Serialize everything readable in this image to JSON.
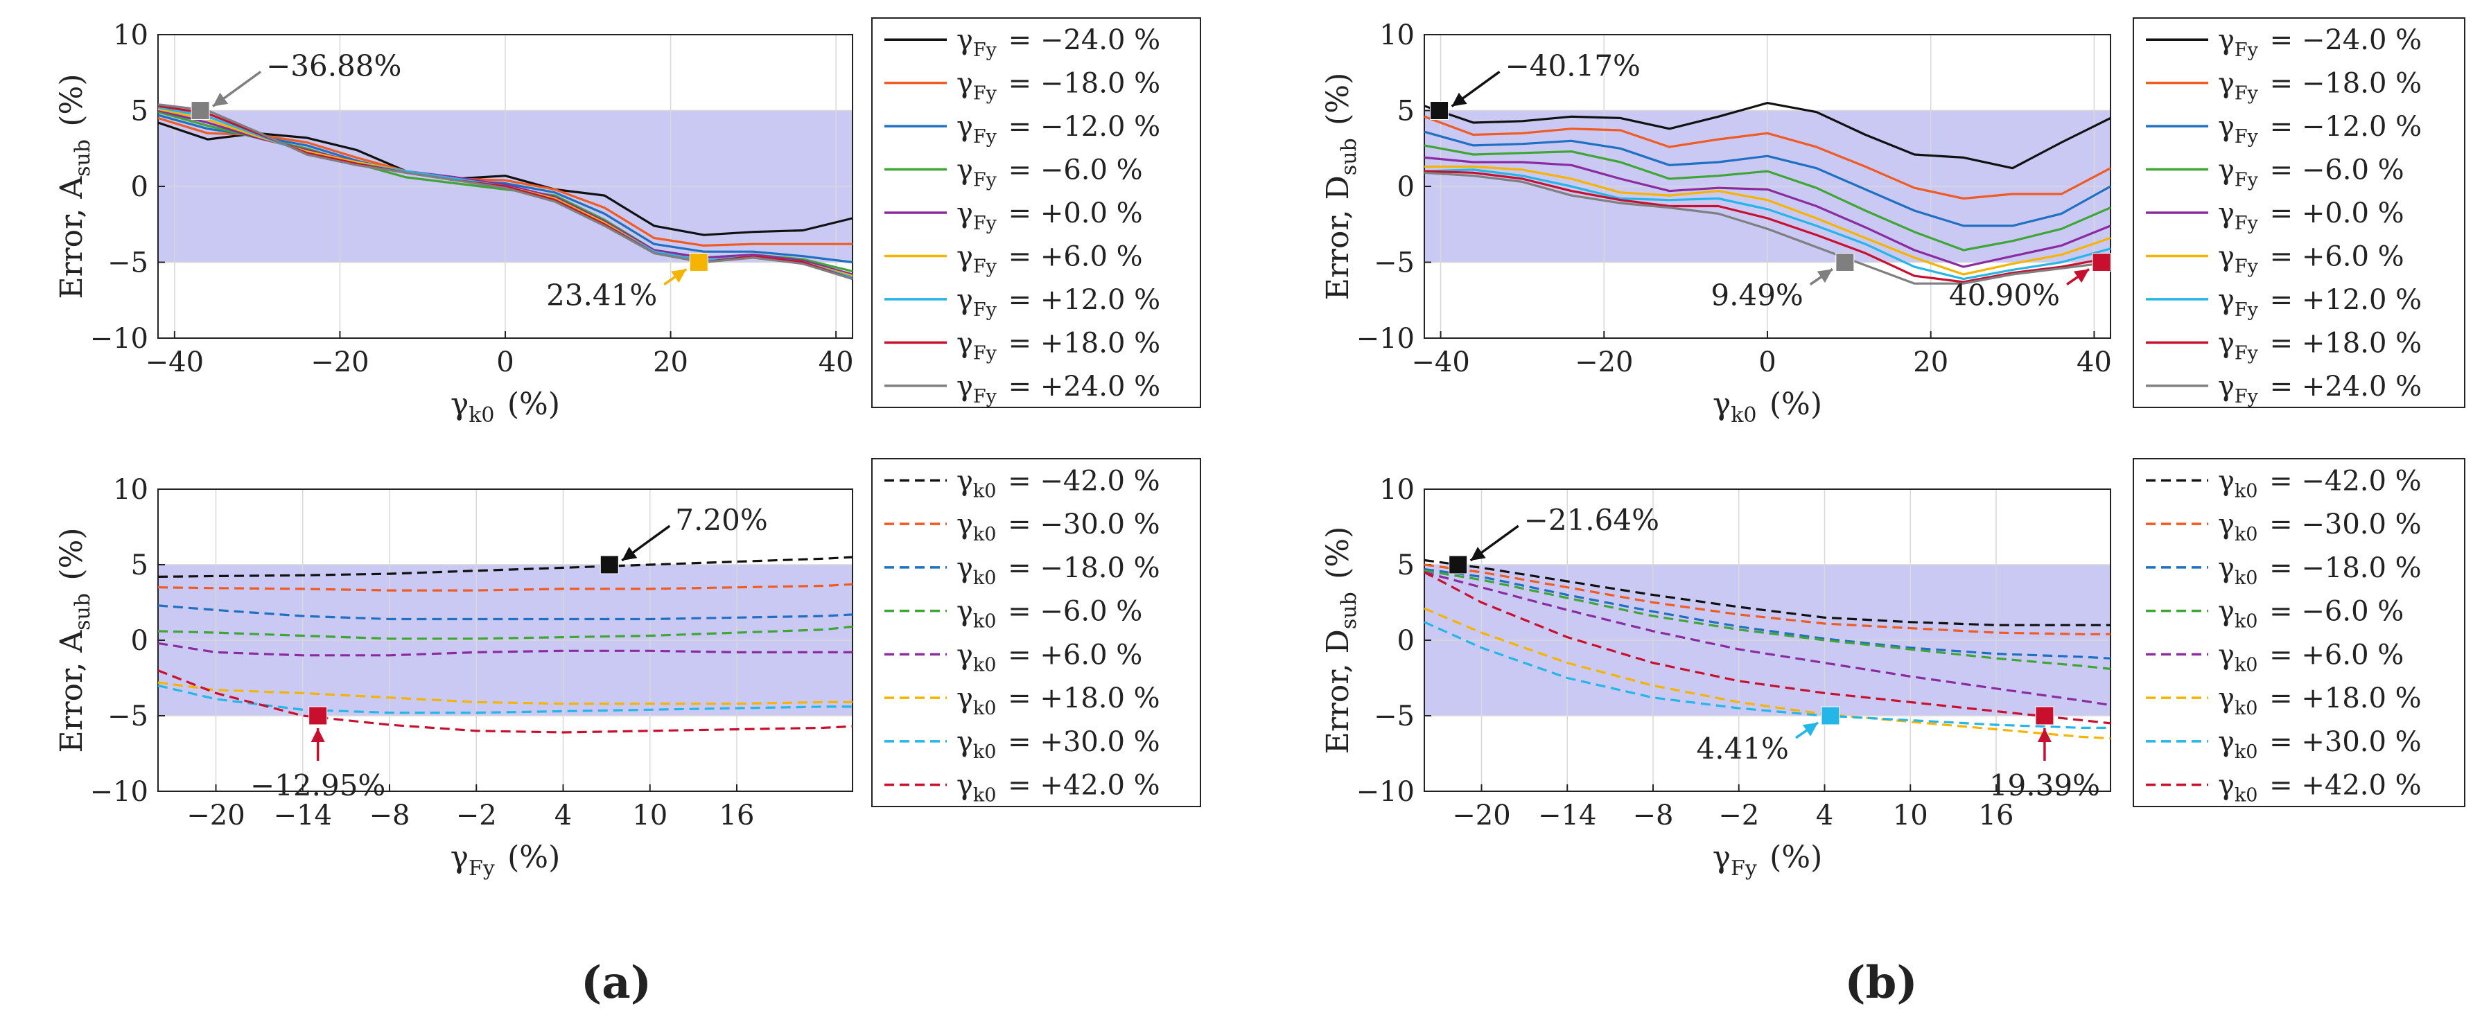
{
  "panel_labels": {
    "a": "(a)",
    "b": "(b)"
  },
  "colors": {
    "band": "#c9c9f3",
    "grid": "#d8d8d8",
    "black": "#111111",
    "orange": "#f05a23",
    "blue": "#1f6fc2",
    "green": "#3fa535",
    "purple": "#8a2ca0",
    "yellow": "#f5b400",
    "cyan": "#25b6e8",
    "crimson": "#c8102e",
    "gray": "#7f7f7f"
  },
  "chart_data": [
    {
      "id": "a-top",
      "type": "line",
      "ylabel": "Error, A_sub (%)",
      "xlabel": "γ_k0 (%)",
      "xlim": [
        -42,
        42
      ],
      "ylim": [
        -10,
        10
      ],
      "xticks": [
        -40,
        -20,
        0,
        20,
        40
      ],
      "yticks": [
        10,
        5,
        0,
        -5,
        -10
      ],
      "tolerance_band": [
        -5,
        5
      ],
      "x": [
        -42,
        -36,
        -30,
        -24,
        -18,
        -12,
        -6,
        0,
        6,
        12,
        18,
        24,
        30,
        36,
        42
      ],
      "series": [
        {
          "name": "γ_Fy = −24.0 %",
          "color": "black",
          "values": [
            4.2,
            3.1,
            3.5,
            3.2,
            2.4,
            1.0,
            0.5,
            0.7,
            -0.2,
            -0.6,
            -2.6,
            -3.2,
            -3.0,
            -2.9,
            -2.1
          ]
        },
        {
          "name": "γ_Fy = −18.0 %",
          "color": "orange",
          "values": [
            4.5,
            3.5,
            3.4,
            2.9,
            1.9,
            1.0,
            0.5,
            0.4,
            -0.2,
            -1.4,
            -3.4,
            -3.9,
            -3.8,
            -3.8,
            -3.8
          ]
        },
        {
          "name": "γ_Fy = −12.0 %",
          "color": "blue",
          "values": [
            4.7,
            3.8,
            3.3,
            2.7,
            1.7,
            0.9,
            0.4,
            0.2,
            -0.4,
            -1.8,
            -3.8,
            -4.3,
            -4.3,
            -4.6,
            -5.0
          ]
        },
        {
          "name": "γ_Fy = −6.0 %",
          "color": "green",
          "values": [
            4.9,
            4.0,
            3.2,
            2.5,
            1.5,
            0.6,
            0.2,
            -0.2,
            -0.6,
            -2.2,
            -4.2,
            -4.7,
            -4.5,
            -4.8,
            -5.6
          ]
        },
        {
          "name": "γ_Fy = +0.0 %",
          "color": "purple",
          "values": [
            5.0,
            4.2,
            3.2,
            2.4,
            1.6,
            1.0,
            0.6,
            0.1,
            -0.7,
            -2.3,
            -4.2,
            -4.7,
            -4.5,
            -4.9,
            -5.8
          ]
        },
        {
          "name": "γ_Fy = +6.0 %",
          "color": "yellow",
          "values": [
            5.1,
            4.4,
            3.3,
            2.3,
            1.6,
            1.0,
            0.5,
            0.0,
            -0.8,
            -2.4,
            -4.3,
            -4.9,
            -4.6,
            -5.0,
            -5.9
          ]
        },
        {
          "name": "γ_Fy = +12.0 %",
          "color": "cyan",
          "values": [
            5.2,
            4.6,
            3.4,
            2.2,
            1.5,
            1.0,
            0.5,
            0.0,
            -0.9,
            -2.5,
            -4.3,
            -4.9,
            -4.6,
            -5.0,
            -6.0
          ]
        },
        {
          "name": "γ_Fy = +18.0 %",
          "color": "crimson",
          "values": [
            5.3,
            4.8,
            3.5,
            2.2,
            1.5,
            0.9,
            0.4,
            0.0,
            -0.9,
            -2.5,
            -4.4,
            -5.0,
            -4.6,
            -5.0,
            -6.1
          ]
        },
        {
          "name": "γ_Fy = +24.0 %",
          "color": "gray",
          "values": [
            5.4,
            5.0,
            3.6,
            2.1,
            1.4,
            0.9,
            0.4,
            -0.1,
            -1.0,
            -2.6,
            -4.4,
            -5.0,
            -4.7,
            -5.1,
            -6.1
          ]
        }
      ],
      "annotations": [
        {
          "x": -36.88,
          "y": 5,
          "label": "−36.88%",
          "color": "gray",
          "dir": "right"
        },
        {
          "x": 23.41,
          "y": -5,
          "label": "23.41%",
          "color": "yellow",
          "dir": "left"
        }
      ]
    },
    {
      "id": "b-top",
      "type": "line",
      "ylabel": "Error, D_sub (%)",
      "xlabel": "γ_k0 (%)",
      "xlim": [
        -42,
        42
      ],
      "ylim": [
        -10,
        10
      ],
      "xticks": [
        -40,
        -20,
        0,
        20,
        40
      ],
      "yticks": [
        10,
        5,
        0,
        -5,
        -10
      ],
      "tolerance_band": [
        -5,
        5
      ],
      "x": [
        -42,
        -36,
        -30,
        -24,
        -18,
        -12,
        -6,
        0,
        6,
        12,
        18,
        24,
        30,
        36,
        42
      ],
      "series": [
        {
          "name": "γ_Fy = −24.0 %",
          "color": "black",
          "values": [
            5.3,
            4.2,
            4.3,
            4.6,
            4.5,
            3.8,
            4.6,
            5.5,
            4.9,
            3.4,
            2.1,
            1.9,
            1.2,
            2.9,
            4.5
          ]
        },
        {
          "name": "γ_Fy = −18.0 %",
          "color": "orange",
          "values": [
            4.6,
            3.4,
            3.5,
            3.8,
            3.7,
            2.6,
            3.1,
            3.5,
            2.6,
            1.3,
            -0.1,
            -0.8,
            -0.5,
            -0.5,
            1.2
          ]
        },
        {
          "name": "γ_Fy = −12.0 %",
          "color": "blue",
          "values": [
            3.6,
            2.7,
            2.8,
            3.0,
            2.5,
            1.4,
            1.6,
            2.0,
            1.2,
            -0.2,
            -1.6,
            -2.6,
            -2.6,
            -1.8,
            0.0
          ]
        },
        {
          "name": "γ_Fy = −6.0 %",
          "color": "green",
          "values": [
            2.7,
            2.1,
            2.2,
            2.3,
            1.6,
            0.5,
            0.7,
            1.0,
            -0.1,
            -1.6,
            -3.0,
            -4.2,
            -3.6,
            -2.8,
            -1.4
          ]
        },
        {
          "name": "γ_Fy = +0.0 %",
          "color": "purple",
          "values": [
            1.9,
            1.6,
            1.6,
            1.4,
            0.5,
            -0.3,
            -0.1,
            -0.2,
            -1.3,
            -2.7,
            -4.2,
            -5.3,
            -4.6,
            -3.9,
            -2.6
          ]
        },
        {
          "name": "γ_Fy = +6.0 %",
          "color": "yellow",
          "values": [
            1.3,
            1.3,
            1.1,
            0.5,
            -0.4,
            -0.6,
            -0.3,
            -0.9,
            -2.1,
            -3.4,
            -4.7,
            -5.8,
            -5.1,
            -4.5,
            -3.4
          ]
        },
        {
          "name": "γ_Fy = +12.0 %",
          "color": "cyan",
          "values": [
            1.0,
            1.1,
            0.7,
            0.0,
            -0.8,
            -0.9,
            -0.8,
            -1.5,
            -2.6,
            -3.8,
            -5.3,
            -6.1,
            -5.5,
            -5.0,
            -4.1
          ]
        },
        {
          "name": "γ_Fy = +18.0 %",
          "color": "crimson",
          "values": [
            1.0,
            0.9,
            0.5,
            -0.3,
            -0.9,
            -1.3,
            -1.3,
            -2.1,
            -3.2,
            -4.4,
            -5.9,
            -6.3,
            -5.7,
            -5.3,
            -4.7
          ]
        },
        {
          "name": "γ_Fy = +24.0 %",
          "color": "gray",
          "values": [
            0.9,
            0.7,
            0.3,
            -0.6,
            -1.1,
            -1.4,
            -1.8,
            -2.8,
            -4.0,
            -5.2,
            -6.4,
            -6.4,
            -5.8,
            -5.4,
            -5.0
          ]
        }
      ],
      "annotations": [
        {
          "x": -40.17,
          "y": 5,
          "label": "−40.17%",
          "color": "black",
          "dir": "right"
        },
        {
          "x": 9.49,
          "y": -5,
          "label": "9.49%",
          "color": "gray",
          "dir": "left"
        },
        {
          "x": 40.9,
          "y": -5,
          "label": "40.90%",
          "color": "crimson",
          "dir": "left"
        }
      ]
    },
    {
      "id": "a-bottom",
      "type": "line",
      "ylabel": "Error, A_sub (%)",
      "xlabel": "γ_Fy (%)",
      "xlim": [
        -24,
        24
      ],
      "ylim": [
        -10,
        10
      ],
      "xticks": [
        -20,
        -14,
        -8,
        -2,
        4,
        10,
        16
      ],
      "yticks": [
        10,
        5,
        0,
        -5,
        -10
      ],
      "tolerance_band": [
        -5,
        5
      ],
      "dashed": true,
      "x": [
        -24,
        -20,
        -14,
        -8,
        -2,
        4,
        10,
        16,
        22,
        24
      ],
      "series": [
        {
          "name": "γ_k0 = −42.0 %",
          "color": "black",
          "values": [
            4.2,
            4.25,
            4.3,
            4.4,
            4.6,
            4.8,
            5.0,
            5.2,
            5.4,
            5.5
          ]
        },
        {
          "name": "γ_k0 = −30.0 %",
          "color": "orange",
          "values": [
            3.5,
            3.45,
            3.4,
            3.3,
            3.3,
            3.4,
            3.4,
            3.5,
            3.6,
            3.7
          ]
        },
        {
          "name": "γ_k0 = −18.0 %",
          "color": "blue",
          "values": [
            2.3,
            2.0,
            1.6,
            1.4,
            1.4,
            1.4,
            1.4,
            1.5,
            1.6,
            1.7
          ]
        },
        {
          "name": "γ_k0 = −6.0 %",
          "color": "green",
          "values": [
            0.6,
            0.5,
            0.3,
            0.1,
            0.1,
            0.2,
            0.3,
            0.5,
            0.7,
            0.9
          ]
        },
        {
          "name": "γ_k0 = +6.0 %",
          "color": "purple",
          "values": [
            -0.2,
            -0.8,
            -1.0,
            -1.0,
            -0.8,
            -0.7,
            -0.7,
            -0.8,
            -0.8,
            -0.8
          ]
        },
        {
          "name": "γ_k0 = +18.0 %",
          "color": "yellow",
          "values": [
            -2.8,
            -3.3,
            -3.5,
            -3.8,
            -4.1,
            -4.2,
            -4.2,
            -4.2,
            -4.1,
            -4.1
          ]
        },
        {
          "name": "γ_k0 = +30.0 %",
          "color": "cyan",
          "values": [
            -3.0,
            -3.9,
            -4.6,
            -4.8,
            -4.8,
            -4.7,
            -4.6,
            -4.5,
            -4.4,
            -4.4
          ]
        },
        {
          "name": "γ_k0 = +42.0 %",
          "color": "crimson",
          "values": [
            -2.0,
            -3.5,
            -5.0,
            -5.6,
            -6.0,
            -6.1,
            -6.0,
            -5.9,
            -5.8,
            -5.7
          ]
        }
      ],
      "annotations": [
        {
          "x": 7.2,
          "y": 5,
          "label": "7.20%",
          "color": "black",
          "dir": "right"
        },
        {
          "x": -12.95,
          "y": -5,
          "label": "−12.95%",
          "color": "crimson",
          "dir": "below"
        }
      ]
    },
    {
      "id": "b-bottom",
      "type": "line",
      "ylabel": "Error, D_sub (%)",
      "xlabel": "γ_Fy (%)",
      "xlim": [
        -24,
        24
      ],
      "ylim": [
        -10,
        10
      ],
      "xticks": [
        -20,
        -14,
        -8,
        -2,
        4,
        10,
        16
      ],
      "yticks": [
        10,
        5,
        0,
        -5,
        -10
      ],
      "tolerance_band": [
        -5,
        5
      ],
      "dashed": true,
      "x": [
        -24,
        -20,
        -14,
        -8,
        -2,
        4,
        10,
        16,
        22,
        24
      ],
      "series": [
        {
          "name": "γ_k0 = −42.0 %",
          "color": "black",
          "values": [
            5.3,
            4.8,
            3.9,
            3.0,
            2.2,
            1.5,
            1.2,
            1.0,
            1.0,
            1.0
          ]
        },
        {
          "name": "γ_k0 = −30.0 %",
          "color": "orange",
          "values": [
            5.0,
            4.5,
            3.5,
            2.5,
            1.7,
            1.1,
            0.8,
            0.5,
            0.4,
            0.4
          ]
        },
        {
          "name": "γ_k0 = −18.0 %",
          "color": "blue",
          "values": [
            4.7,
            4.2,
            3.0,
            1.9,
            0.9,
            0.1,
            -0.5,
            -0.9,
            -1.1,
            -1.2
          ]
        },
        {
          "name": "γ_k0 = −6.0 %",
          "color": "green",
          "values": [
            4.6,
            4.0,
            2.8,
            1.6,
            0.7,
            0.0,
            -0.6,
            -1.2,
            -1.7,
            -1.9
          ]
        },
        {
          "name": "γ_k0 = +6.0 %",
          "color": "purple",
          "values": [
            4.5,
            3.5,
            2.0,
            0.6,
            -0.6,
            -1.5,
            -2.4,
            -3.2,
            -4.0,
            -4.3
          ]
        },
        {
          "name": "γ_k0 = +18.0 %",
          "color": "yellow",
          "values": [
            2.1,
            0.5,
            -1.5,
            -3.0,
            -4.1,
            -4.9,
            -5.4,
            -5.9,
            -6.4,
            -6.5
          ]
        },
        {
          "name": "γ_k0 = +30.0 %",
          "color": "cyan",
          "values": [
            1.2,
            -0.5,
            -2.5,
            -3.8,
            -4.5,
            -5.0,
            -5.3,
            -5.6,
            -5.8,
            -5.8
          ]
        },
        {
          "name": "γ_k0 = +42.0 %",
          "color": "crimson",
          "values": [
            4.5,
            2.5,
            0.2,
            -1.5,
            -2.7,
            -3.5,
            -4.1,
            -4.7,
            -5.3,
            -5.5
          ]
        }
      ],
      "annotations": [
        {
          "x": -21.64,
          "y": 5,
          "label": "−21.64%",
          "color": "black",
          "dir": "right"
        },
        {
          "x": 4.41,
          "y": -5,
          "label": "4.41%",
          "color": "cyan",
          "dir": "left"
        },
        {
          "x": 19.39,
          "y": -5,
          "label": "19.39%",
          "color": "crimson",
          "dir": "below"
        }
      ]
    }
  ]
}
